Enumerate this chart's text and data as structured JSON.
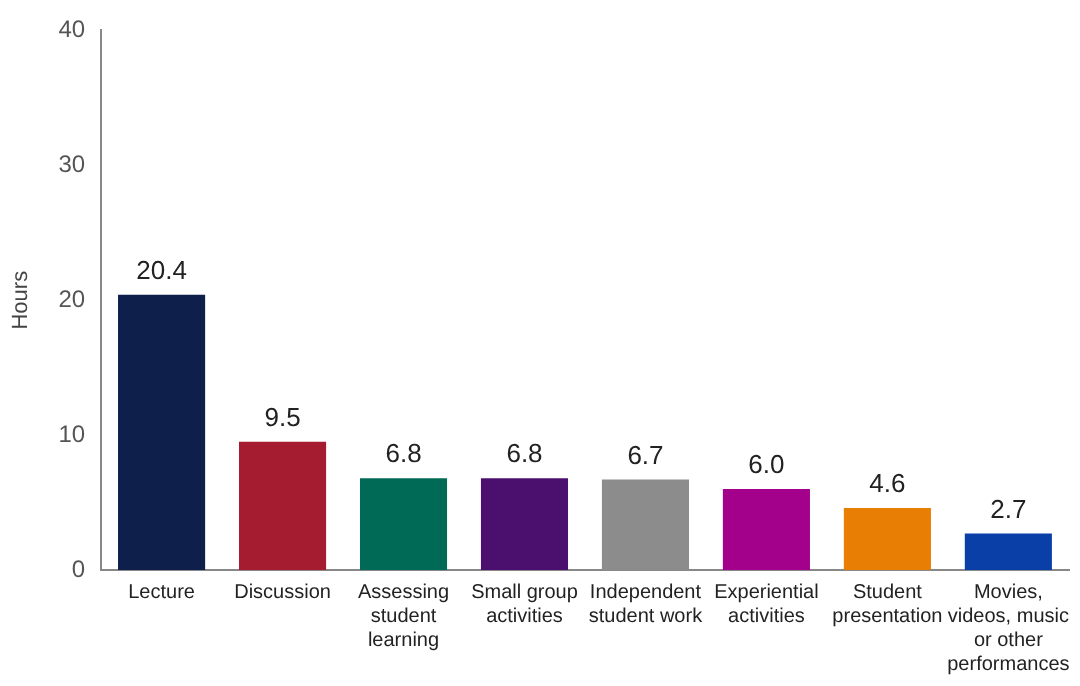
{
  "chart_data": {
    "type": "bar",
    "ylabel": "Hours",
    "categories": [
      "Lecture",
      "Discussion",
      "Assessing student learning",
      "Small group activities",
      "Independent student work",
      "Experiential activities",
      "Student presentation",
      "Movies, videos, music or other performances"
    ],
    "values": [
      20.4,
      9.5,
      6.8,
      6.8,
      6.7,
      6.0,
      4.6,
      2.7
    ],
    "value_labels": [
      "20.4",
      "9.5",
      "6.8",
      "6.8",
      "6.7",
      "6.0",
      "4.6",
      "2.7"
    ],
    "colors": [
      "#0f1f4b",
      "#a51c30",
      "#006a56",
      "#4b0f6e",
      "#8c8c8c",
      "#a3008c",
      "#e87e04",
      "#0b3fa8"
    ],
    "ylim": [
      0,
      40
    ],
    "yticks": [
      0,
      10,
      20,
      30,
      40
    ],
    "grid": false,
    "legend": false
  }
}
